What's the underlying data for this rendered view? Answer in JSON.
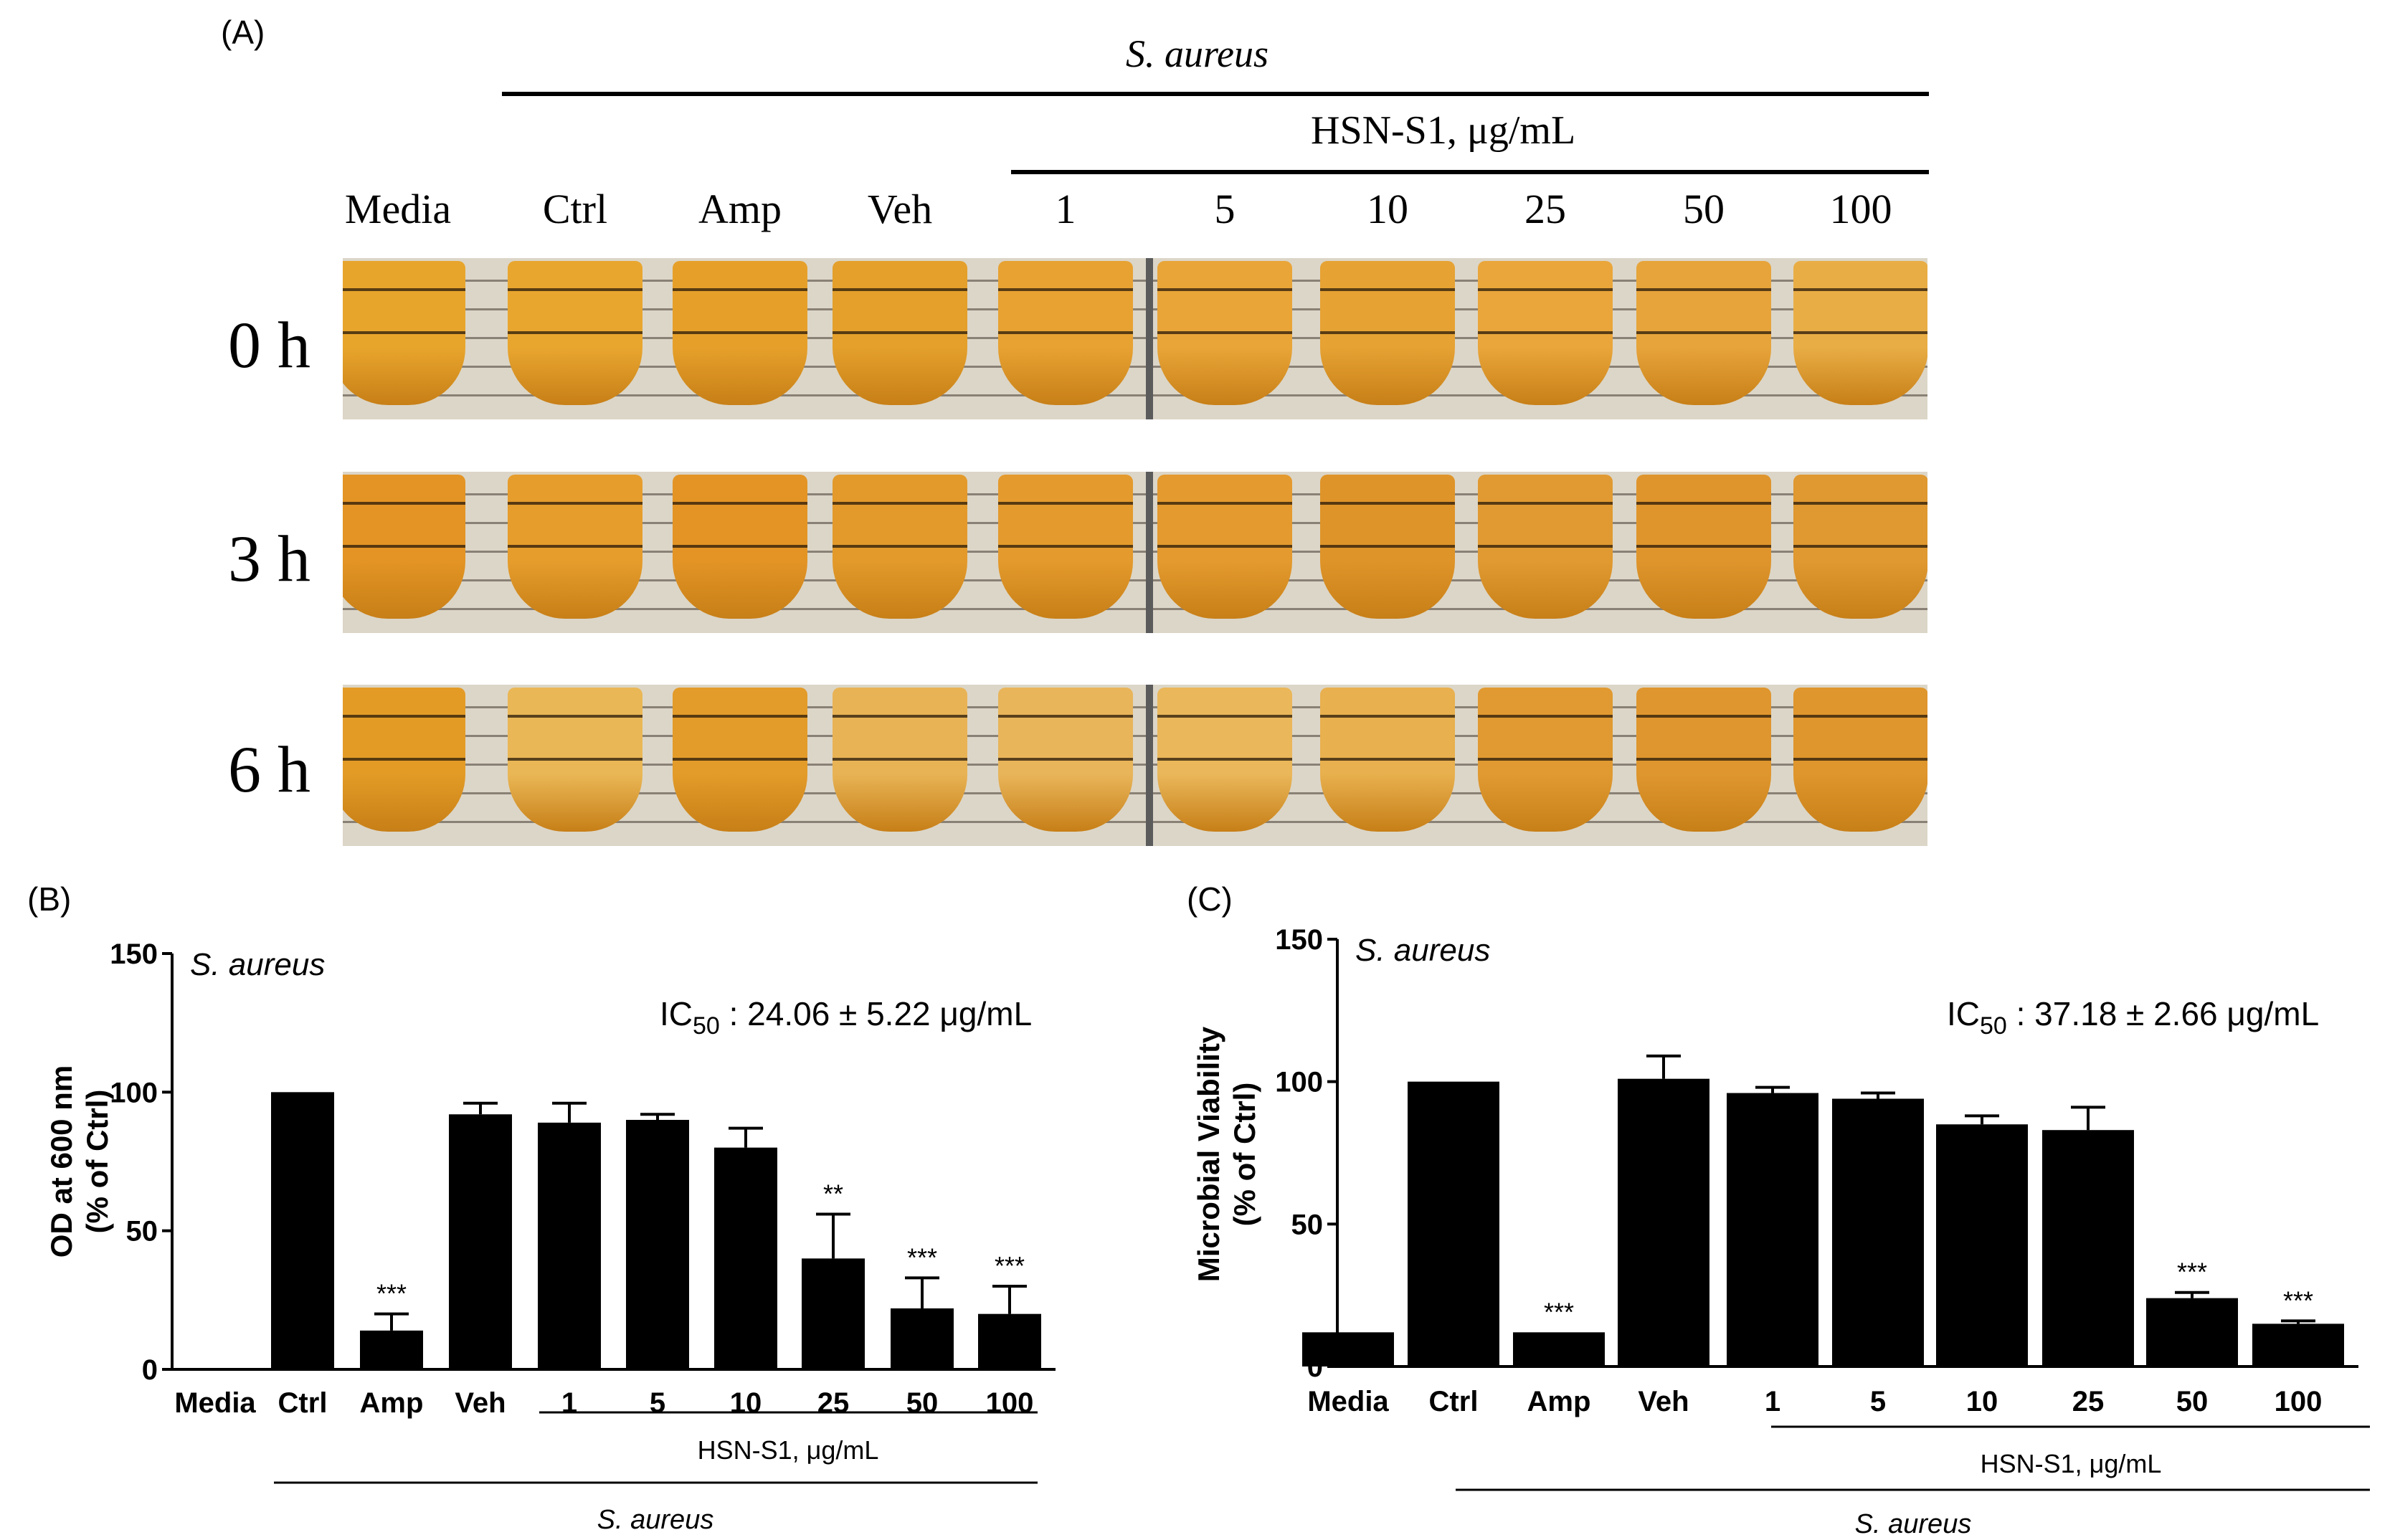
{
  "panelA": {
    "label": "(A)",
    "organism": "S. aureus",
    "treatment_label": "HSN-S1, μg/mL",
    "columns": [
      "Media",
      "Ctrl",
      "Amp",
      "Veh",
      "1",
      "5",
      "10",
      "25",
      "50",
      "100"
    ],
    "rows": [
      {
        "label": "0 h",
        "tones": [
          "#e8a52c",
          "#e9a62f",
          "#e6a02a",
          "#e4a02b",
          "#e8a232",
          "#e9a538",
          "#e6a233",
          "#eaa63a",
          "#e7a43a",
          "#e9ad45"
        ]
      },
      {
        "label": "3 h",
        "tones": [
          "#e39424",
          "#e69d2c",
          "#e39425",
          "#e39a2b",
          "#e49a2c",
          "#e49a2e",
          "#df9429",
          "#e19a31",
          "#df952c",
          "#e09830"
        ]
      },
      {
        "label": "6 h",
        "tones": [
          "#e39b26",
          "#eab756",
          "#e39b29",
          "#e8b355",
          "#e9b55a",
          "#eab75a",
          "#e8b04e",
          "#e19a31",
          "#df962e",
          "#df962c"
        ]
      }
    ]
  },
  "chart_data": [
    {
      "panel_label": "(B)",
      "type": "bar",
      "inset_title": "S. aureus",
      "annotation_prefix": "IC",
      "annotation_sub": "50",
      "annotation_value": " : 24.06 ± 5.22 μg/mL",
      "ylabel_line1": "OD at 600 nm",
      "ylabel_line2": "(% of Ctrl)",
      "ylim": [
        0,
        150
      ],
      "yticks": [
        0,
        50,
        100,
        150
      ],
      "categories": [
        "Media",
        "Ctrl",
        "Amp",
        "Veh",
        "1",
        "5",
        "10",
        "25",
        "50",
        "100"
      ],
      "values": [
        0,
        100,
        14,
        92,
        89,
        90,
        80,
        40,
        22,
        20
      ],
      "errors": [
        0,
        0,
        6,
        4,
        7,
        2,
        7,
        16,
        11,
        10
      ],
      "significance": [
        "",
        "",
        "***",
        "",
        "",
        "",
        "",
        "**",
        "***",
        "***"
      ],
      "treatment_label": "HSN-S1, μg/mL",
      "organism_label": "S. aureus"
    },
    {
      "panel_label": "(C)",
      "type": "bar",
      "inset_title": "S. aureus",
      "annotation_prefix": "IC",
      "annotation_sub": "50",
      "annotation_value": " : 37.18 ± 2.66 μg/mL",
      "ylabel_line1": "Microbial Viability",
      "ylabel_line2": "(% of Ctrl)",
      "ylim": [
        0,
        150
      ],
      "yticks": [
        0,
        50,
        100,
        150
      ],
      "categories": [
        "Media",
        "Ctrl",
        "Amp",
        "Veh",
        "1",
        "5",
        "10",
        "25",
        "50",
        "100"
      ],
      "values": [
        12,
        100,
        12,
        101,
        96,
        94,
        85,
        83,
        24,
        15
      ],
      "errors": [
        0,
        0,
        0,
        8,
        2,
        2,
        3,
        8,
        2,
        1
      ],
      "significance": [
        "",
        "",
        "***",
        "",
        "",
        "",
        "",
        "",
        "***",
        "***"
      ],
      "treatment_label": "HSN-S1, μg/mL",
      "organism_label": "S. aureus"
    }
  ]
}
